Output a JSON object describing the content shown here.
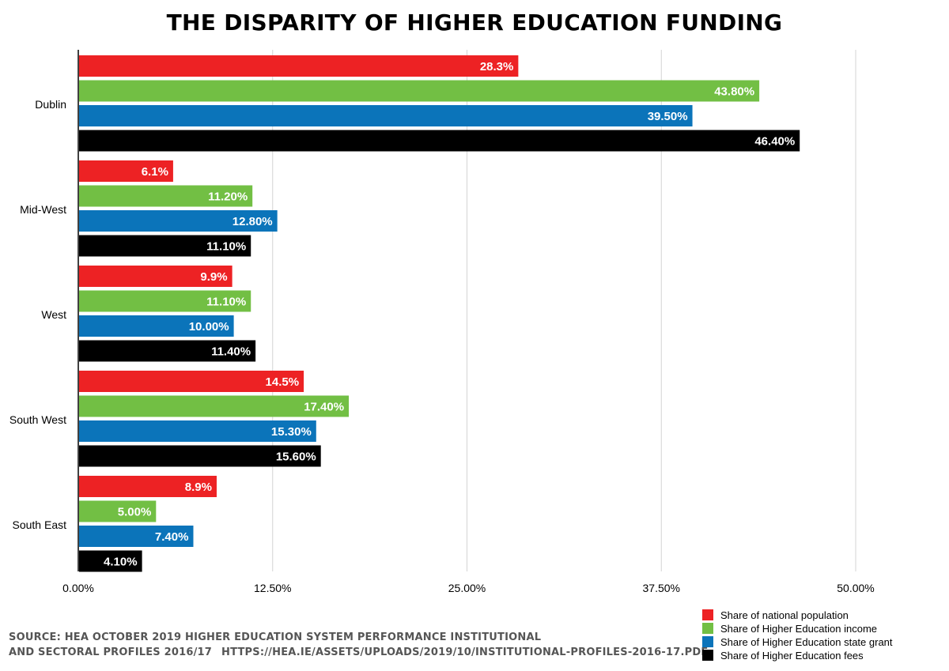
{
  "title": "THE DISPARITY OF HIGHER EDUCATION FUNDING",
  "source": {
    "line1": "SOURCE: HEA OCTOBER 2019 HIGHER EDUCATION SYSTEM PERFORMANCE INSTITUTIONAL",
    "line2": "AND SECTORAL PROFILES 2016/17",
    "url": "HTTPS://HEA.IE/ASSETS/UPLOADS/2019/10/INSTITUTIONAL-PROFILES-2016-17.PDF"
  },
  "chart_data": {
    "type": "bar",
    "orientation": "horizontal",
    "title": "THE DISPARITY OF HIGHER EDUCATION FUNDING",
    "categories": [
      "Dublin",
      "Mid-West",
      "West",
      "South West",
      "South East"
    ],
    "series": [
      {
        "name": "Share of national population",
        "color": "#ed2224",
        "values": [
          28.3,
          6.1,
          9.9,
          14.5,
          8.9
        ],
        "labels": [
          "28.3%",
          "6.1%",
          "9.9%",
          "14.5%",
          "8.9%"
        ]
      },
      {
        "name": "Share of Higher Education income",
        "color": "#72bf44",
        "values": [
          43.8,
          11.2,
          11.1,
          17.4,
          5.0
        ],
        "labels": [
          "43.80%",
          "11.20%",
          "11.10%",
          "17.40%",
          "5.00%"
        ]
      },
      {
        "name": "Share of Higher Education state grant",
        "color": "#0b74ba",
        "values": [
          39.5,
          12.8,
          10.0,
          15.3,
          7.4
        ],
        "labels": [
          "39.50%",
          "12.80%",
          "10.00%",
          "15.30%",
          "7.40%"
        ]
      },
      {
        "name": "Share of Higher Education fees",
        "color": "#000000",
        "values": [
          46.4,
          11.1,
          11.4,
          15.6,
          4.1
        ],
        "labels": [
          "46.40%",
          "11.10%",
          "11.40%",
          "15.60%",
          "4.10%"
        ]
      }
    ],
    "xlim": [
      0,
      50
    ],
    "xticks": [
      0,
      12.5,
      25,
      37.5,
      50
    ],
    "xtick_labels": [
      "0.00%",
      "12.50%",
      "25.00%",
      "37.50%",
      "50.00%"
    ],
    "grid": true,
    "legend_position": "bottom-right",
    "xlabel": "",
    "ylabel": ""
  }
}
